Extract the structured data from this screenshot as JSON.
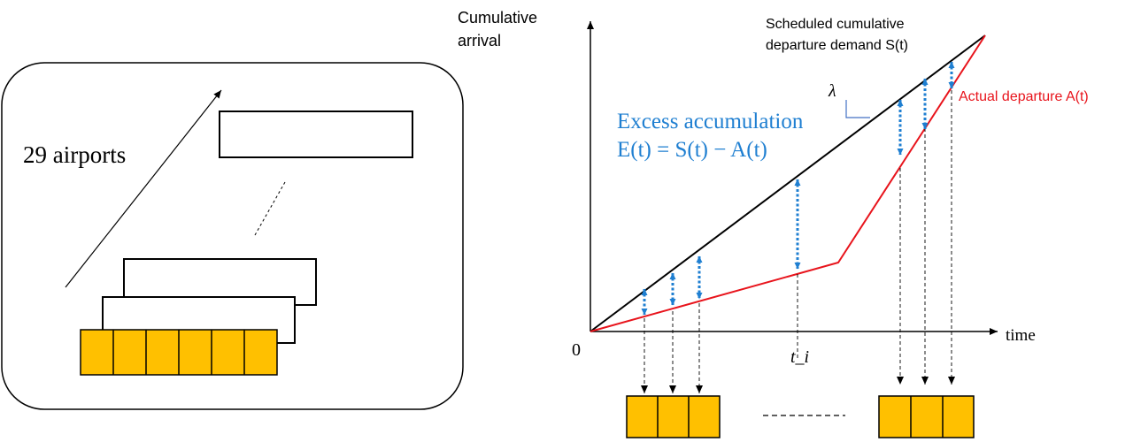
{
  "colors": {
    "slot_fill": "#ffc000",
    "scheduled_line": "#000000",
    "actual_line": "#e8141c",
    "excess": "#1f7fd1"
  },
  "left_panel": {
    "airports_label": "29 airports"
  },
  "graph": {
    "y_axis_label": [
      "Cumulative",
      "arrival"
    ],
    "x_axis_label": "time",
    "origin_label": "0",
    "rate_symbol": "λ",
    "time_index_label": "t_i",
    "scheduled_label": [
      "Scheduled cumulative",
      "departure demand S(t)"
    ],
    "actual_label": "Actual departure A(t)",
    "excess_label": [
      "Excess accumulation",
      "E(t) = S(t) − A(t)"
    ]
  }
}
